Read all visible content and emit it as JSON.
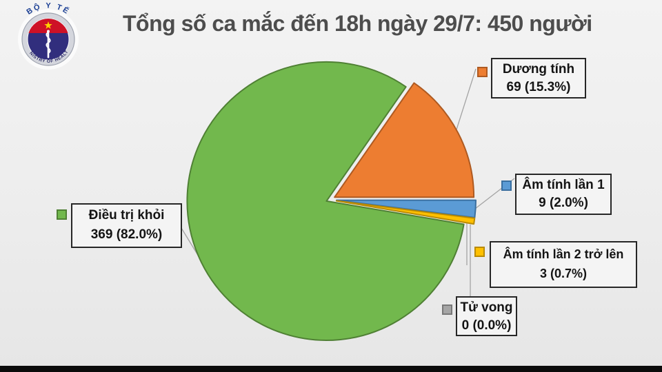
{
  "title": "Tổng số ca mắc đến 18h ngày 29/7: 450 người",
  "logo": {
    "top_text": "BỘ Y TẾ",
    "bottom_text": "MINISTRY OF HEALTH"
  },
  "colors": {
    "background": "#EDEDED",
    "title_text": "#4D4D4D",
    "label_text": "#141414",
    "label_box_border": "#262626",
    "bottom_bar": "#0B0B0B",
    "leader_line": "#A3A3A3"
  },
  "chart_data": {
    "type": "pie",
    "title": "Tổng số ca mắc đến 18h ngày 29/7: 450 người",
    "total_value": 450,
    "total_label": "450 người",
    "legend_position": "callout-labels",
    "center": [
      478,
      290
    ],
    "radius": 202,
    "start_angle_deg": 34.8,
    "leader_color": "#A3A3A3",
    "slices": [
      {
        "id": "duong-tinh",
        "label": "Dương tính",
        "value": 69,
        "pct": 15.3,
        "display": "69 (15.3%)",
        "color": "#ED7D31",
        "border": "#AE5A21",
        "explode": 8
      },
      {
        "id": "am-tinh-1",
        "label": "Âm tính lần 1",
        "value": 9,
        "pct": 2.0,
        "display": "9 (2.0%)",
        "color": "#5B9BD5",
        "border": "#3A6FA0",
        "explode": 10
      },
      {
        "id": "am-tinh-2",
        "label": "Âm tính lần 2 trở lên",
        "value": 3,
        "pct": 0.7,
        "display": "3 (0.7%)",
        "color": "#FFC000",
        "border": "#B98A00",
        "explode": 10
      },
      {
        "id": "tu-vong",
        "label": "Tử vong",
        "value": 0,
        "pct": 0.0,
        "display": "0 (0.0%)",
        "color": "#A5A5A5",
        "border": "#787878",
        "explode": 0
      },
      {
        "id": "dieu-tri-khoi",
        "label": "Điều trị khỏi",
        "value": 369,
        "pct": 82.0,
        "display": "369 (82.0%)",
        "color": "#72B84D",
        "border": "#4F8034",
        "explode": 5
      }
    ],
    "leader_lines": [
      {
        "for": "duong-tinh",
        "points": [
          [
            690,
            100
          ],
          [
            662,
            188
          ]
        ]
      },
      {
        "for": "am-tinh-1",
        "points": [
          [
            746,
            259
          ],
          [
            689,
            303
          ]
        ]
      },
      {
        "for": "am-tinh-2",
        "points": [
          [
            677,
            324
          ],
          [
            677,
            385
          ]
        ]
      },
      {
        "for": "tu-vong",
        "points": [
          [
            682,
            326
          ],
          [
            682,
            430
          ]
        ]
      },
      {
        "for": "dieu-tri-khoi",
        "points": [
          [
            263,
            331
          ],
          [
            291,
            377
          ]
        ]
      }
    ]
  }
}
